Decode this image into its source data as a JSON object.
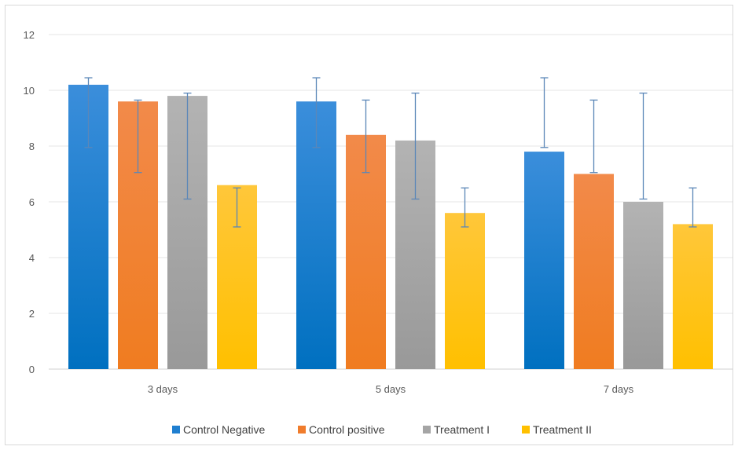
{
  "chart_data": {
    "type": "bar",
    "title": "",
    "xlabel": "",
    "ylabel": "",
    "categories": [
      "3 days",
      "5 days",
      "7 days"
    ],
    "ylim": [
      0,
      12
    ],
    "yticks": [
      0,
      2,
      4,
      6,
      8,
      10,
      12
    ],
    "grid": true,
    "legend_position": "bottom",
    "series": [
      {
        "name": "Control Negative",
        "color": "#1F7FD0",
        "color_top": "#3B8EDB",
        "color_bottom": "#0070C0",
        "values": [
          10.2,
          9.6,
          7.8
        ],
        "error_low": [
          7.95,
          7.95,
          7.95
        ],
        "error_high": [
          10.45,
          10.45,
          10.45
        ]
      },
      {
        "name": "Control positive",
        "color": "#F07C2C",
        "color_top": "#F28A4A",
        "color_bottom": "#F07C20",
        "values": [
          9.6,
          8.4,
          7.0
        ],
        "error_low": [
          7.05,
          7.05,
          7.05
        ],
        "error_high": [
          9.65,
          9.65,
          9.65
        ]
      },
      {
        "name": "Treatment I",
        "color": "#A5A5A5",
        "color_top": "#B3B3B3",
        "color_bottom": "#999999",
        "values": [
          9.8,
          8.2,
          6.0
        ],
        "error_low": [
          6.1,
          6.1,
          6.1
        ],
        "error_high": [
          9.9,
          9.9,
          9.9
        ]
      },
      {
        "name": "Treatment II",
        "color": "#FFC000",
        "color_top": "#FFC73A",
        "color_bottom": "#FFC000",
        "values": [
          6.6,
          5.6,
          5.2
        ],
        "error_low": [
          5.1,
          5.1,
          5.1
        ],
        "error_high": [
          6.5,
          6.5,
          6.5
        ]
      }
    ],
    "error_bar_color": "#5B87B8",
    "gridline_color": "#e6e6e6",
    "axis_line_color": "#d0d0d0"
  }
}
